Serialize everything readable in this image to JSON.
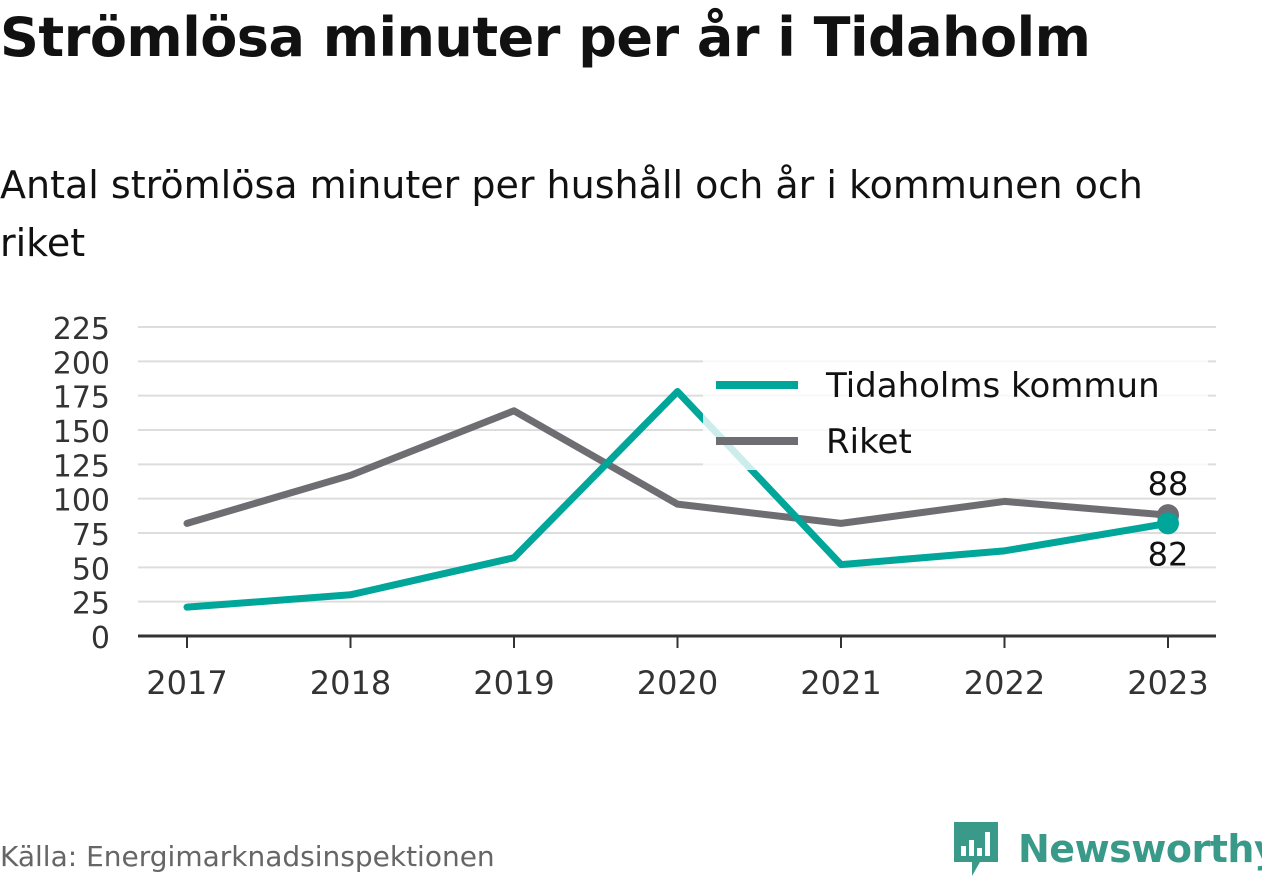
{
  "title": "Strömlösa minuter per år i Tidaholm",
  "subtitle": "Antal strömlösa minuter per hushåll och år i kommunen och riket",
  "source": "Källa: Energimarknadsinspektionen",
  "brand": {
    "name": "Newsworthy",
    "icon": "newsworthy-logo-icon",
    "color": "#3a9a8a"
  },
  "colors": {
    "series_primary": "#00a699",
    "series_secondary": "#6e6d72",
    "grid": "#dddddd",
    "axis": "#333333"
  },
  "chart_data": {
    "type": "line",
    "x": [
      "2017",
      "2018",
      "2019",
      "2020",
      "2021",
      "2022",
      "2023"
    ],
    "series": [
      {
        "name": "Tidaholms kommun",
        "values": [
          21,
          30,
          57,
          178,
          52,
          62,
          82
        ],
        "color": "#00a699",
        "end_label": "82"
      },
      {
        "name": "Riket",
        "values": [
          82,
          117,
          164,
          96,
          82,
          98,
          88
        ],
        "color": "#6e6d72",
        "end_label": "88"
      }
    ],
    "y_ticks": [
      0,
      25,
      50,
      75,
      100,
      125,
      150,
      175,
      200,
      225
    ],
    "ylim": [
      0,
      225
    ],
    "grid": true,
    "legend": "top-right"
  }
}
